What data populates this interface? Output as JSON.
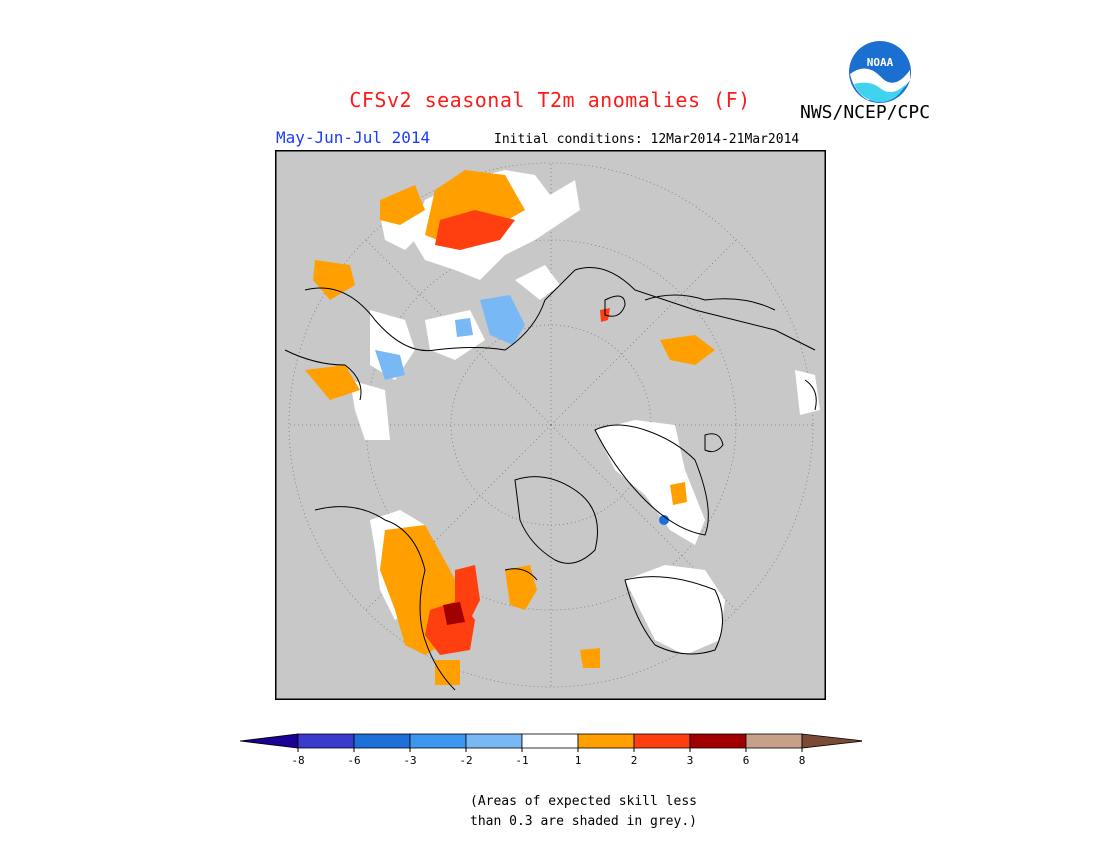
{
  "title": "CFSv2 seasonal T2m anomalies (F)",
  "agency": "NWS/NCEP/CPC",
  "logo_text": "NOAA",
  "period": "May-Jun-Jul 2014",
  "initial_conditions": "Initial conditions: 12Mar2014-21Mar2014",
  "note_lines": [
    "(Areas of expected skill less",
    "than 0.3 are shaded in grey.)"
  ],
  "legend": {
    "colors": [
      "#1a0095",
      "#3a3acc",
      "#1e6fd9",
      "#3d96f0",
      "#78b8f5",
      "#ffffff",
      "#ffa000",
      "#ff3f10",
      "#a00000",
      "#c8a08a",
      "#7a4a35"
    ],
    "tick_labels": [
      "-8",
      "-6",
      "-3",
      "-2",
      "-1",
      "1",
      "2",
      "3",
      "6",
      "8"
    ]
  },
  "colors": {
    "skill_mask_grey": "#c8c8c8",
    "near_normal": "#ffffff",
    "warm1": "#ffa000",
    "warm2": "#ff3f10",
    "warm3": "#a00000",
    "cool1": "#78b8f5",
    "cool2": "#1e6fd9",
    "title_red": "#ff1a1a",
    "period_blue": "#1a3cff"
  }
}
